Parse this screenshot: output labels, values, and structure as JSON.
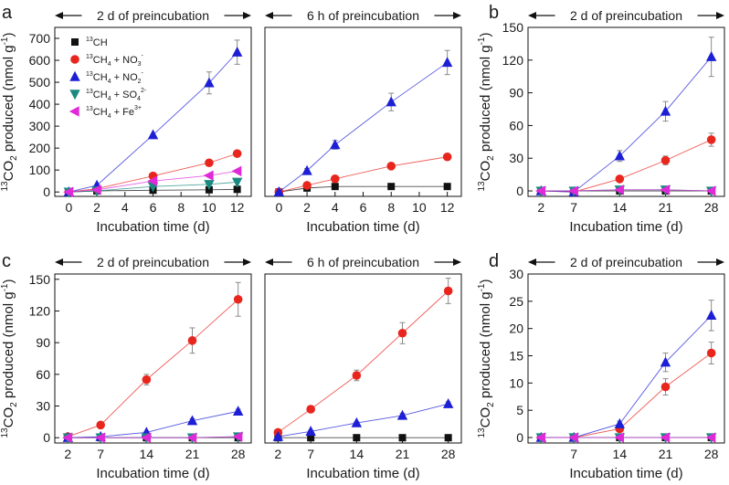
{
  "legend": {
    "entries": [
      {
        "label": "13CH",
        "pre": "13",
        "main": "CH",
        "sub": "",
        "sup": "",
        "color": "#111111",
        "marker": "square"
      },
      {
        "label": "13CH4 + NO3-",
        "pre": "13",
        "main": "CH",
        "sub": "4",
        "sup": "",
        "tail": " + NO",
        "tailsub": "3",
        "tailsup": "-",
        "color": "#e8261e",
        "marker": "circle"
      },
      {
        "label": "13CH4 + NO2-",
        "pre": "13",
        "main": "CH",
        "sub": "4",
        "tail": " + NO",
        "tailsub": "2",
        "tailsup": "-",
        "color": "#1d1fd6",
        "marker": "triangle-up"
      },
      {
        "label": "13CH4 + SO4 2-",
        "pre": "13",
        "main": "CH",
        "sub": "4",
        "tail": " + SO",
        "tailsub": "4",
        "tailsup": "2-",
        "color": "#1a8a80",
        "marker": "triangle-down"
      },
      {
        "label": "13CH4 + Fe3+",
        "pre": "13",
        "main": "CH",
        "sub": "4",
        "tail": " + Fe",
        "tailsub": "",
        "tailsup": "3+",
        "color": "#e02ad8",
        "marker": "triangle-left"
      }
    ]
  },
  "colors": {
    "black": "#111111",
    "red": "#e8261e",
    "blue": "#1d1fd6",
    "teal": "#1a8a80",
    "magenta": "#e02ad8",
    "errorbar": "#8a8a8a"
  },
  "chart_data": [
    {
      "id": "a-left",
      "panel_letter": "a",
      "type": "line",
      "header": "2 d of preincubation",
      "ylabel": {
        "pre": "13",
        "main": "CO",
        "sub": "2",
        "rest": " produced (nmol g",
        "sup": "-1",
        "end": ")"
      },
      "xlabel": "Incubation time (d)",
      "xlim": [
        -1,
        13
      ],
      "ylim": [
        -20,
        750
      ],
      "xticks": [
        0,
        2,
        4,
        6,
        8,
        10,
        12
      ],
      "yticks": [
        0,
        100,
        200,
        300,
        400,
        500,
        600,
        700
      ],
      "series": [
        {
          "name": "13CH",
          "color": "#111111",
          "marker": "square",
          "x": [
            0,
            2,
            6,
            10,
            12
          ],
          "y": [
            0,
            5,
            8,
            10,
            12
          ],
          "err": [
            0,
            0,
            0,
            0,
            0
          ]
        },
        {
          "name": "13CH4 + NO3-",
          "color": "#e8261e",
          "marker": "circle",
          "x": [
            0,
            2,
            6,
            10,
            12
          ],
          "y": [
            0,
            15,
            73,
            133,
            175
          ],
          "err": [
            0,
            0,
            0,
            8,
            12
          ]
        },
        {
          "name": "13CH4 + NO2-",
          "color": "#1d1fd6",
          "marker": "triangle-up",
          "x": [
            0,
            2,
            6,
            10,
            12
          ],
          "y": [
            0,
            30,
            260,
            497,
            637
          ],
          "err": [
            0,
            0,
            0,
            50,
            55
          ]
        },
        {
          "name": "13CH4 + SO4 2-",
          "color": "#1a8a80",
          "marker": "triangle-down",
          "x": [
            0,
            2,
            6,
            10,
            12
          ],
          "y": [
            0,
            5,
            25,
            35,
            45
          ],
          "err": [
            0,
            0,
            0,
            0,
            0
          ]
        },
        {
          "name": "13CH4 + Fe3+",
          "color": "#e02ad8",
          "marker": "triangle-left",
          "x": [
            0,
            2,
            6,
            10,
            12
          ],
          "y": [
            0,
            10,
            50,
            75,
            95
          ],
          "err": [
            0,
            0,
            0,
            0,
            0
          ]
        }
      ]
    },
    {
      "id": "a-right",
      "panel_letter": "",
      "type": "line",
      "header": "6 h of preincubation",
      "ylabel": null,
      "xlabel": "Incubation time (d)",
      "xlim": [
        -1,
        13
      ],
      "ylim": [
        -20,
        750
      ],
      "xticks": [
        0,
        2,
        4,
        6,
        8,
        10,
        12
      ],
      "yticks": [],
      "series": [
        {
          "name": "13CH",
          "color": "#111111",
          "marker": "square",
          "x": [
            0,
            2,
            4,
            8,
            12
          ],
          "y": [
            0,
            18,
            25,
            25,
            25
          ],
          "err": [
            0,
            0,
            0,
            0,
            0
          ]
        },
        {
          "name": "13CH4 + NO3-",
          "color": "#e8261e",
          "marker": "circle",
          "x": [
            0,
            2,
            4,
            8,
            12
          ],
          "y": [
            0,
            30,
            60,
            118,
            160
          ],
          "err": [
            0,
            0,
            0,
            0,
            5
          ]
        },
        {
          "name": "13CH4 + NO2-",
          "color": "#1d1fd6",
          "marker": "triangle-up",
          "x": [
            0,
            2,
            4,
            8,
            12
          ],
          "y": [
            0,
            97,
            215,
            410,
            590
          ],
          "err": [
            0,
            10,
            20,
            40,
            55
          ]
        }
      ]
    },
    {
      "id": "b",
      "panel_letter": "b",
      "type": "line",
      "header": "2 d of preincubation",
      "ylabel": {
        "pre": "13",
        "main": "CO",
        "sub": "2",
        "rest": " produced (nmol g",
        "sup": "-1",
        "end": ")"
      },
      "xlabel": "Incubation time (d)",
      "xlim": [
        0,
        30
      ],
      "ylim": [
        -5,
        150
      ],
      "xticks": [
        2,
        7,
        14,
        21,
        28
      ],
      "yticks": [
        0,
        30,
        60,
        90,
        120,
        150
      ],
      "series": [
        {
          "name": "13CH",
          "color": "#111111",
          "marker": "square",
          "x": [
            2,
            7,
            14,
            21,
            28
          ],
          "y": [
            0,
            0,
            0,
            0,
            0
          ],
          "err": [
            0,
            0,
            0,
            0,
            0
          ]
        },
        {
          "name": "13CH4 + NO3-",
          "color": "#e8261e",
          "marker": "circle",
          "x": [
            2,
            7,
            14,
            21,
            28
          ],
          "y": [
            0,
            -1,
            11,
            28,
            47
          ],
          "err": [
            0,
            0,
            2,
            4,
            6
          ]
        },
        {
          "name": "13CH4 + NO2-",
          "color": "#1d1fd6",
          "marker": "triangle-up",
          "x": [
            2,
            7,
            14,
            21,
            28
          ],
          "y": [
            0,
            -1,
            32,
            73,
            123
          ],
          "err": [
            0,
            0,
            5,
            9,
            18
          ]
        },
        {
          "name": "13CH4 + SO4 2-",
          "color": "#1a8a80",
          "marker": "triangle-down",
          "x": [
            2,
            7,
            14,
            21,
            28
          ],
          "y": [
            0,
            0,
            1,
            1,
            0
          ],
          "err": [
            0,
            0,
            0,
            0,
            0
          ]
        },
        {
          "name": "13CH4 + Fe3+",
          "color": "#e02ad8",
          "marker": "triangle-left",
          "x": [
            2,
            7,
            14,
            21,
            28
          ],
          "y": [
            0,
            0,
            1,
            1,
            0
          ],
          "err": [
            0,
            0,
            0,
            0,
            0
          ]
        }
      ]
    },
    {
      "id": "c-left",
      "panel_letter": "c",
      "type": "line",
      "header": "2 d of preincubation",
      "ylabel": {
        "pre": "13",
        "main": "CO",
        "sub": "2",
        "rest": " produced (nmol g",
        "sup": "-1",
        "end": ")"
      },
      "xlabel": "Incubation time (d)",
      "xlim": [
        0,
        30
      ],
      "ylim": [
        -5,
        155
      ],
      "xticks": [
        2,
        7,
        14,
        21,
        28
      ],
      "yticks": [
        0,
        30,
        60,
        90,
        120,
        150
      ],
      "series": [
        {
          "name": "13CH",
          "color": "#111111",
          "marker": "square",
          "x": [
            2,
            7,
            14,
            21,
            28
          ],
          "y": [
            0,
            0,
            0,
            0,
            0
          ],
          "err": [
            0,
            0,
            0,
            0,
            0
          ]
        },
        {
          "name": "13CH4 + NO3-",
          "color": "#e8261e",
          "marker": "circle",
          "x": [
            2,
            7,
            14,
            21,
            28
          ],
          "y": [
            1,
            12,
            55,
            92,
            131
          ],
          "err": [
            0,
            2,
            5,
            12,
            16
          ]
        },
        {
          "name": "13CH4 + NO2-",
          "color": "#1d1fd6",
          "marker": "triangle-up",
          "x": [
            2,
            7,
            14,
            21,
            28
          ],
          "y": [
            0,
            1,
            5,
            16,
            25
          ],
          "err": [
            0,
            0,
            1,
            2,
            2
          ]
        },
        {
          "name": "13CH4 + SO4 2-",
          "color": "#1a8a80",
          "marker": "triangle-down",
          "x": [
            2,
            7,
            14,
            21,
            28
          ],
          "y": [
            0,
            0,
            0,
            0,
            1
          ],
          "err": [
            0,
            0,
            0,
            0,
            0
          ]
        },
        {
          "name": "13CH4 + Fe3+",
          "color": "#e02ad8",
          "marker": "triangle-left",
          "x": [
            2,
            7,
            14,
            21,
            28
          ],
          "y": [
            0,
            0,
            0,
            0,
            1
          ],
          "err": [
            0,
            0,
            0,
            0,
            0
          ]
        }
      ]
    },
    {
      "id": "c-right",
      "panel_letter": "",
      "type": "line",
      "header": "6 h of preincubation",
      "ylabel": null,
      "xlabel": "Incubation time (d)",
      "xlim": [
        0,
        30
      ],
      "ylim": [
        -5,
        155
      ],
      "xticks": [
        2,
        7,
        14,
        21,
        28
      ],
      "yticks": [],
      "series": [
        {
          "name": "13CH",
          "color": "#111111",
          "marker": "square",
          "x": [
            2,
            7,
            14,
            21,
            28
          ],
          "y": [
            0,
            0,
            0,
            0,
            0
          ],
          "err": [
            0,
            0,
            0,
            0,
            0
          ]
        },
        {
          "name": "13CH4 + NO3-",
          "color": "#e8261e",
          "marker": "circle",
          "x": [
            2,
            7,
            14,
            21,
            28
          ],
          "y": [
            5,
            27,
            59,
            99,
            139
          ],
          "err": [
            0,
            3,
            5,
            10,
            12
          ]
        },
        {
          "name": "13CH4 + NO2-",
          "color": "#1d1fd6",
          "marker": "triangle-up",
          "x": [
            2,
            7,
            14,
            21,
            28
          ],
          "y": [
            1,
            6,
            14,
            21,
            32
          ],
          "err": [
            0,
            1,
            1,
            2,
            2
          ]
        }
      ]
    },
    {
      "id": "d",
      "panel_letter": "d",
      "type": "line",
      "header": "2 d of preincubation",
      "ylabel": {
        "pre": "13",
        "main": "CO",
        "sub": "2",
        "rest": " produced (nmol g",
        "sup": "-1",
        "end": ")"
      },
      "xlabel": "Incubation time (d)",
      "xlim": [
        0,
        30
      ],
      "ylim": [
        -1,
        30
      ],
      "xticks": [
        7,
        14,
        21,
        28
      ],
      "yticks": [
        0,
        5,
        10,
        15,
        20,
        25,
        30
      ],
      "series": [
        {
          "name": "13CH",
          "color": "#111111",
          "marker": "square",
          "x": [
            2,
            7,
            14,
            21,
            28
          ],
          "y": [
            0,
            0,
            0,
            0,
            0
          ],
          "err": [
            0,
            0,
            0,
            0,
            0
          ]
        },
        {
          "name": "13CH4 + NO3-",
          "color": "#e8261e",
          "marker": "circle",
          "x": [
            2,
            7,
            14,
            21,
            28
          ],
          "y": [
            0,
            0,
            1.6,
            9.3,
            15.5
          ],
          "err": [
            0,
            0,
            0.5,
            1.5,
            2
          ]
        },
        {
          "name": "13CH4 + NO2-",
          "color": "#1d1fd6",
          "marker": "triangle-up",
          "x": [
            2,
            7,
            14,
            21,
            28
          ],
          "y": [
            0,
            0,
            2.5,
            13.8,
            22.4
          ],
          "err": [
            0,
            0,
            0.5,
            1.7,
            2.8
          ]
        },
        {
          "name": "13CH4 + SO4 2-",
          "color": "#1a8a80",
          "marker": "triangle-down",
          "x": [
            2,
            7,
            14,
            21,
            28
          ],
          "y": [
            0,
            0,
            0,
            0,
            0
          ],
          "err": [
            0,
            0,
            0,
            0,
            0
          ]
        },
        {
          "name": "13CH4 + Fe3+",
          "color": "#e02ad8",
          "marker": "triangle-left",
          "x": [
            2,
            7,
            14,
            21,
            28
          ],
          "y": [
            0,
            0,
            0,
            0,
            0
          ],
          "err": [
            0,
            0,
            0,
            0,
            0
          ]
        }
      ]
    }
  ]
}
